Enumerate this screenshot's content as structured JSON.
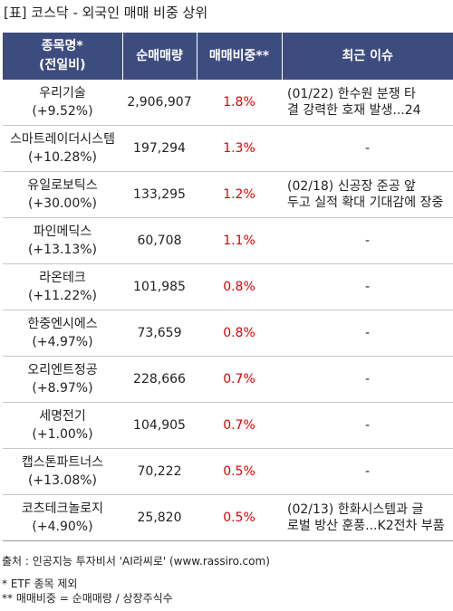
{
  "title": "[표] 코스닥 - 외국인 매매 비중 상위",
  "headers": {
    "name_l1": "종목명*",
    "name_l2": "(전일비)",
    "volume": "순매매량",
    "ratio": "매매비중**",
    "issue": "최근 이슈"
  },
  "rows": [
    {
      "name": "우리기술",
      "change": "(+9.52%)",
      "volume": "2,906,907",
      "ratio": "1.8%",
      "issue_l1": "(01/22) 한수원 분쟁 타",
      "issue_l2": "결 강력한 호재 발생...24"
    },
    {
      "name": "스마트레이더시스템",
      "change": "(+10.28%)",
      "volume": "197,294",
      "ratio": "1.3%",
      "issue_l1": "-",
      "issue_l2": ""
    },
    {
      "name": "유일로보틱스",
      "change": "(+30.00%)",
      "volume": "133,295",
      "ratio": "1.2%",
      "issue_l1": "(02/18) 신공장 준공 앞",
      "issue_l2": "두고 실적 확대 기대감에 장중"
    },
    {
      "name": "파인메딕스",
      "change": "(+13.13%)",
      "volume": "60,708",
      "ratio": "1.1%",
      "issue_l1": "-",
      "issue_l2": ""
    },
    {
      "name": "라온테크",
      "change": "(+11.22%)",
      "volume": "101,985",
      "ratio": "0.8%",
      "issue_l1": "-",
      "issue_l2": ""
    },
    {
      "name": "한중엔시에스",
      "change": "(+4.97%)",
      "volume": "73,659",
      "ratio": "0.8%",
      "issue_l1": "-",
      "issue_l2": ""
    },
    {
      "name": "오리엔트정공",
      "change": "(+8.97%)",
      "volume": "228,666",
      "ratio": "0.7%",
      "issue_l1": "-",
      "issue_l2": ""
    },
    {
      "name": "세명전기",
      "change": "(+1.00%)",
      "volume": "104,905",
      "ratio": "0.7%",
      "issue_l1": "-",
      "issue_l2": ""
    },
    {
      "name": "캡스톤파트너스",
      "change": "(+13.08%)",
      "volume": "70,222",
      "ratio": "0.5%",
      "issue_l1": "-",
      "issue_l2": ""
    },
    {
      "name": "코츠테크놀로지",
      "change": "(+4.90%)",
      "volume": "25,820",
      "ratio": "0.5%",
      "issue_l1": "(02/13) 한화시스템과 글",
      "issue_l2": "로벌 방산 훈풍...K2전차 부품"
    }
  ],
  "source": "출처 : 인공지능 투자비서 'AI라씨로' (www.rassiro.com)",
  "notes": [
    "* ETF 종목 제외",
    "** 매매비중 = 순매매량 / 상장주식수"
  ],
  "colors": {
    "header_bg": "#3d4c7e",
    "ratio_text": "#e00000"
  }
}
